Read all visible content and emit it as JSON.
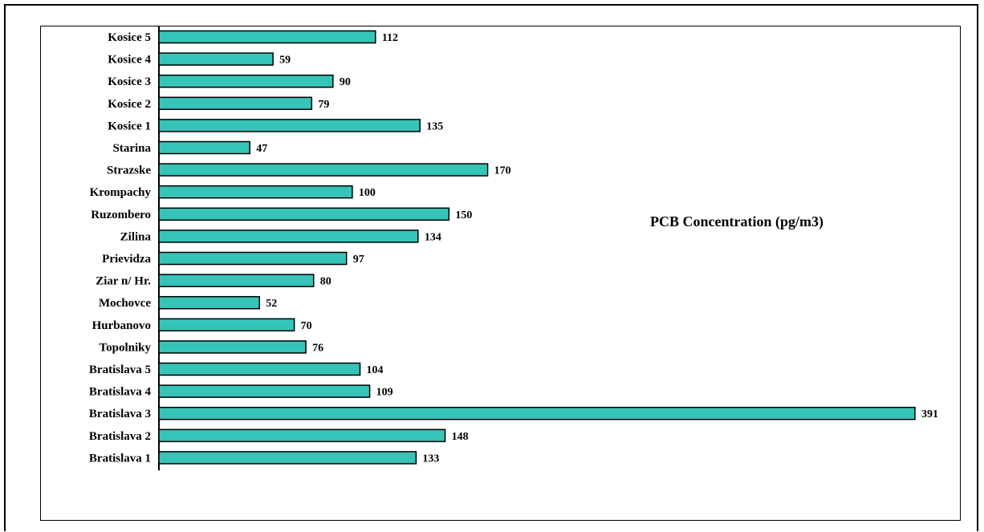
{
  "chart_data": {
    "type": "bar",
    "orientation": "horizontal",
    "title": "PCB Concentration (pg/m3)",
    "categories": [
      "Kosice 5",
      "Kosice 4",
      "Kosice 3",
      "Kosice 2",
      "Kosice 1",
      "Starina",
      "Strazske",
      "Krompachy",
      "Ruzombero",
      "Zilina",
      "Prievidza",
      "Ziar n/ Hr.",
      "Mochovce",
      "Hurbanovo",
      "Topolniky",
      "Bratislava 5",
      "Bratislava 4",
      "Bratislava 3",
      "Bratislava 2",
      "Bratislava 1"
    ],
    "values": [
      112,
      59,
      90,
      79,
      135,
      47,
      170,
      100,
      150,
      134,
      97,
      80,
      52,
      70,
      76,
      104,
      109,
      391,
      148,
      133
    ],
    "xlim": [
      0,
      391
    ],
    "grid": false,
    "legend": "none",
    "colors": {
      "bar_fill": "#36c3b8",
      "bar_stroke": "#000000"
    }
  }
}
